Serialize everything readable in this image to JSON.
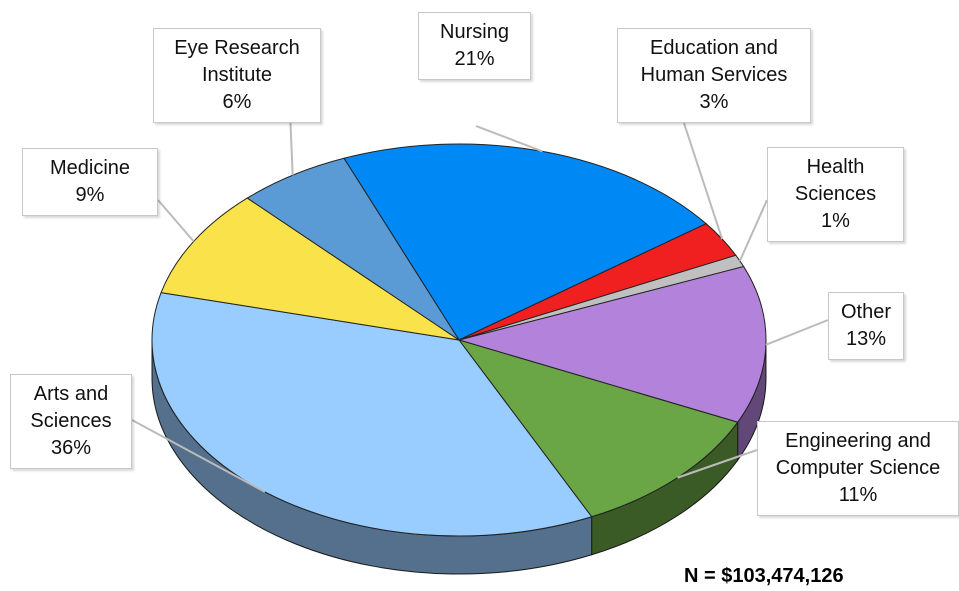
{
  "chart_data": {
    "type": "pie",
    "categories": [
      "Nursing",
      "Education and Human Services",
      "Health Sciences",
      "Other",
      "Engineering and Computer Science",
      "Arts and Sciences",
      "Medicine",
      "Eye Research Institute"
    ],
    "values": [
      21,
      3,
      1,
      13,
      11,
      36,
      9,
      6
    ],
    "value_labels": [
      "21%",
      "3%",
      "1%",
      "13%",
      "11%",
      "36%",
      "9%",
      "6%"
    ],
    "colors": [
      "#0088f5",
      "#f02020",
      "#c0c0c0",
      "#b383db",
      "#6aa646",
      "#99ccff",
      "#fae24a",
      "#5b9bd5"
    ],
    "annotation": "N = $103,474,126"
  }
}
